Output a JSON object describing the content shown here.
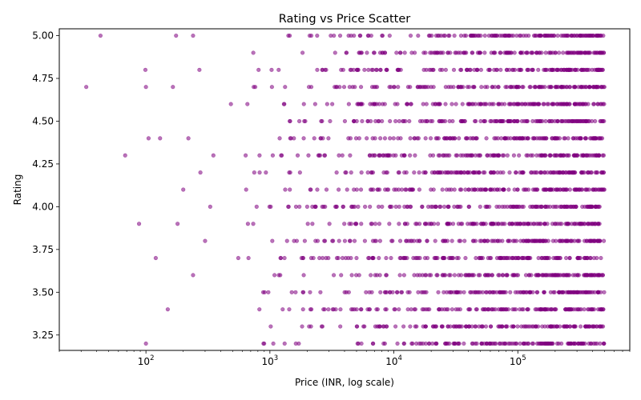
{
  "chart_data": {
    "type": "scatter",
    "title": "Rating vs Price Scatter",
    "xlabel": "Price (INR, log scale)",
    "ylabel": "Rating",
    "x_scale": "log",
    "xlim": [
      20,
      800000
    ],
    "ylim": [
      3.16,
      5.04
    ],
    "x_major_ticks": [
      {
        "value": 100,
        "base": "10",
        "exp": "2"
      },
      {
        "value": 1000,
        "base": "10",
        "exp": "3"
      },
      {
        "value": 10000,
        "base": "10",
        "exp": "4"
      },
      {
        "value": 100000,
        "base": "10",
        "exp": "5"
      }
    ],
    "y_ticks": [
      {
        "value": 3.25,
        "label": "3.25"
      },
      {
        "value": 3.5,
        "label": "3.50"
      },
      {
        "value": 3.75,
        "label": "3.75"
      },
      {
        "value": 4.0,
        "label": "4.00"
      },
      {
        "value": 4.25,
        "label": "4.25"
      },
      {
        "value": 4.5,
        "label": "4.50"
      },
      {
        "value": 4.75,
        "label": "4.75"
      },
      {
        "value": 5.0,
        "label": "5.00"
      }
    ],
    "grid": false,
    "marker_color": "#800080",
    "marker_alpha": 0.55,
    "rating_levels": [
      3.2,
      3.3,
      3.4,
      3.5,
      3.6,
      3.7,
      3.8,
      3.9,
      4.0,
      4.1,
      4.2,
      4.3,
      4.4,
      4.5,
      4.6,
      4.7,
      4.8,
      4.9,
      5.0
    ],
    "price_range": [
      30,
      500000
    ],
    "points_per_level": 140,
    "sparse_points": [
      {
        "x": 33,
        "y": 4.7
      },
      {
        "x": 43,
        "y": 5.0
      },
      {
        "x": 68,
        "y": 4.3
      },
      {
        "x": 88,
        "y": 3.9
      },
      {
        "x": 99,
        "y": 4.8
      },
      {
        "x": 100,
        "y": 4.7
      },
      {
        "x": 100,
        "y": 3.2
      },
      {
        "x": 105,
        "y": 4.4
      },
      {
        "x": 120,
        "y": 3.7
      },
      {
        "x": 130,
        "y": 4.4
      },
      {
        "x": 150,
        "y": 3.4
      },
      {
        "x": 165,
        "y": 4.7
      },
      {
        "x": 175,
        "y": 5.0
      },
      {
        "x": 180,
        "y": 3.9
      },
      {
        "x": 200,
        "y": 4.1
      },
      {
        "x": 220,
        "y": 4.4
      },
      {
        "x": 240,
        "y": 5.0
      },
      {
        "x": 240,
        "y": 3.6
      },
      {
        "x": 270,
        "y": 4.8
      },
      {
        "x": 275,
        "y": 4.2
      },
      {
        "x": 300,
        "y": 3.8
      },
      {
        "x": 330,
        "y": 4.0
      },
      {
        "x": 350,
        "y": 4.3
      }
    ]
  }
}
